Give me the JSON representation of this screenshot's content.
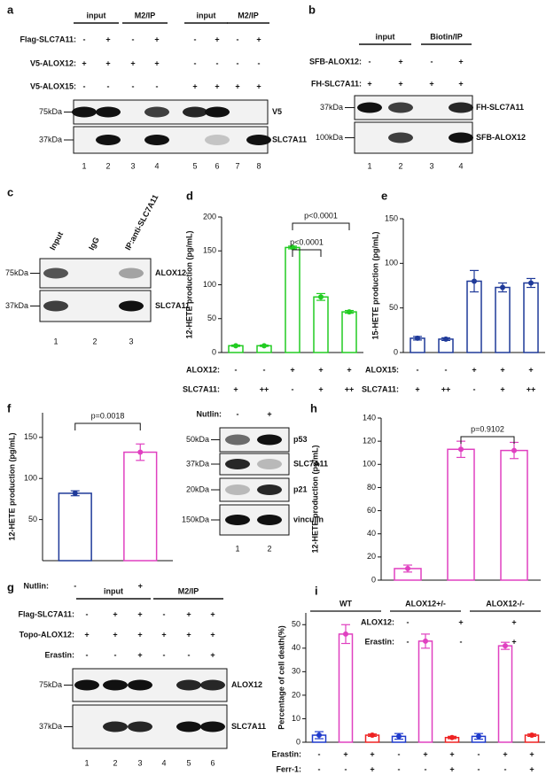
{
  "blots": {
    "a": {
      "label": "a",
      "headers": [
        "input",
        "M2/IP",
        "input",
        "M2/IP"
      ],
      "rows": [
        {
          "name": "Flag-SLC7A11:",
          "signs": [
            "-",
            "+",
            "-",
            "+",
            "-",
            "+",
            "-",
            "+"
          ]
        },
        {
          "name": "V5-ALOX12:",
          "signs": [
            "+",
            "+",
            "+",
            "+",
            "-",
            "-",
            "-",
            "-"
          ]
        },
        {
          "name": "V5-ALOX15:",
          "signs": [
            "-",
            "-",
            "-",
            "-",
            "+",
            "+",
            "+",
            "+"
          ]
        }
      ],
      "blots": [
        {
          "marker": "75kDa",
          "name": "V5"
        },
        {
          "marker": "37kDa",
          "name": "SLC7A11"
        }
      ],
      "lanes": [
        1,
        2,
        3,
        4,
        5,
        6,
        7,
        8
      ]
    },
    "b": {
      "label": "b",
      "headers": [
        "input",
        "Biotin/IP"
      ],
      "rows": [
        {
          "name": "SFB-ALOX12:",
          "signs": [
            "-",
            "+",
            "-",
            "+"
          ]
        },
        {
          "name": "FH-SLC7A11:",
          "signs": [
            "+",
            "+",
            "+",
            "+"
          ]
        }
      ],
      "blots": [
        {
          "marker": "37kDa",
          "name": "FH-SLC7A11"
        },
        {
          "marker": "100kDa",
          "name": "SFB-ALOX12"
        }
      ],
      "lanes": [
        1,
        2,
        3,
        4
      ]
    },
    "c": {
      "label": "c",
      "columns": [
        "Input",
        "IgG",
        "IP:anti-SLC7A11"
      ],
      "blots": [
        {
          "marker": "75kDa",
          "name": "ALOX12"
        },
        {
          "marker": "37kDa",
          "name": "SLC7A11"
        }
      ],
      "lanes": [
        1,
        2,
        3
      ]
    },
    "f": {
      "rows": [
        {
          "name": "Nutlin:",
          "signs": [
            "-",
            "+"
          ]
        }
      ],
      "blots": [
        {
          "marker": "50kDa",
          "name": "p53"
        },
        {
          "marker": "37kDa",
          "name": "SLC7A11"
        },
        {
          "marker": "20kDa",
          "name": "p21"
        },
        {
          "marker": "150kDa",
          "name": "vinculin"
        }
      ],
      "lanes": [
        1,
        2
      ]
    },
    "g": {
      "label": "g",
      "headers": [
        "input",
        "M2/IP"
      ],
      "rows": [
        {
          "name": "Flag-SLC7A11:",
          "signs": [
            "-",
            "+",
            "+",
            "-",
            "+",
            "+"
          ]
        },
        {
          "name": "Topo-ALOX12:",
          "signs": [
            "+",
            "+",
            "+",
            "+",
            "+",
            "+"
          ]
        },
        {
          "name": "Erastin:",
          "signs": [
            "-",
            "-",
            "+",
            "-",
            "-",
            "+"
          ]
        }
      ],
      "blots": [
        {
          "marker": "75kDa",
          "name": "ALOX12"
        },
        {
          "marker": "37kDa",
          "name": "SLC7A11"
        }
      ],
      "lanes": [
        1,
        2,
        3,
        4,
        5,
        6
      ]
    }
  },
  "chart_data": [
    {
      "type": "bar",
      "label": "d",
      "ylabel": "12-HETE production (pg/mL)",
      "ylim": [
        0,
        200
      ],
      "yticks": [
        0,
        50,
        100,
        150,
        200
      ],
      "values": [
        10,
        10,
        155,
        82,
        60
      ],
      "errors": [
        1,
        1,
        2,
        5,
        2
      ],
      "colors": [
        "#22cc22",
        "#22cc22",
        "#22cc22",
        "#22cc22",
        "#22cc22"
      ],
      "conditions": [
        {
          "name": "ALOX12:",
          "signs": [
            "-",
            "-",
            "+",
            "+",
            "+"
          ]
        },
        {
          "name": "SLC7A11:",
          "signs": [
            "+",
            "++",
            "-",
            "+",
            "++"
          ]
        }
      ],
      "annotations": [
        "p<0.0001",
        "p<0.0001"
      ]
    },
    {
      "type": "bar",
      "label": "e",
      "ylabel": "15-HETE production (pg/mL)",
      "ylim": [
        0,
        150
      ],
      "yticks": [
        0,
        50,
        100,
        150
      ],
      "values": [
        16,
        15,
        80,
        73,
        78
      ],
      "errors": [
        2,
        1.5,
        12,
        5,
        5
      ],
      "colors": [
        "#1f3a99",
        "#1f3a99",
        "#1f3a99",
        "#1f3a99",
        "#1f3a99"
      ],
      "conditions": [
        {
          "name": "ALOX15:",
          "signs": [
            "-",
            "-",
            "+",
            "+",
            "+"
          ]
        },
        {
          "name": "SLC7A11:",
          "signs": [
            "+",
            "++",
            "-",
            "+",
            "++"
          ]
        }
      ]
    },
    {
      "type": "bar",
      "label": "f",
      "ylabel": "12-HETE production (pg/mL)",
      "ylim": [
        0,
        180
      ],
      "yticks": [
        50,
        100,
        150
      ],
      "values": [
        82,
        132
      ],
      "errors": [
        3,
        10
      ],
      "colors": [
        "#1f3a99",
        "#e040c0"
      ],
      "conditions": [
        {
          "name": "Nutlin:",
          "signs": [
            "-",
            "+"
          ]
        }
      ],
      "annotations": [
        "p=0.0018"
      ]
    },
    {
      "type": "bar",
      "label": "h",
      "ylabel": "12-HETE production (pg/mL)",
      "ylim": [
        0,
        140
      ],
      "yticks": [
        0,
        20,
        40,
        60,
        80,
        100,
        120,
        140
      ],
      "values": [
        10,
        113,
        112
      ],
      "errors": [
        3,
        7,
        7
      ],
      "colors": [
        "#e040c0",
        "#e040c0",
        "#e040c0"
      ],
      "conditions": [
        {
          "name": "ALOX12:",
          "signs": [
            "-",
            "+",
            "+"
          ]
        },
        {
          "name": "Erastin:",
          "signs": [
            "-",
            "-",
            "+"
          ]
        }
      ],
      "annotations": [
        "p=0.9102"
      ]
    },
    {
      "type": "bar",
      "label": "i",
      "ylabel": "Percentage of cell death(%)",
      "ylim": [
        0,
        55
      ],
      "yticks": [
        0,
        10,
        20,
        30,
        40,
        50
      ],
      "values": [
        3,
        46,
        3,
        2.5,
        43,
        2,
        2.5,
        41,
        3
      ],
      "errors": [
        1.5,
        4,
        0.5,
        1.2,
        3,
        0.5,
        1.2,
        1.5,
        0.5
      ],
      "colors": [
        "#1f3acc",
        "#e040c0",
        "#ee2222",
        "#1f3acc",
        "#e040c0",
        "#ee2222",
        "#1f3acc",
        "#e040c0",
        "#ee2222"
      ],
      "groups": [
        "WT",
        "ALOX12+/-",
        "ALOX12-/-"
      ],
      "conditions": [
        {
          "name": "Erastin:",
          "signs": [
            "-",
            "+",
            "+",
            "-",
            "+",
            "+",
            "-",
            "+",
            "+"
          ]
        },
        {
          "name": "Ferr-1:",
          "signs": [
            "-",
            "-",
            "+",
            "-",
            "-",
            "+",
            "-",
            "-",
            "+"
          ]
        }
      ]
    }
  ]
}
